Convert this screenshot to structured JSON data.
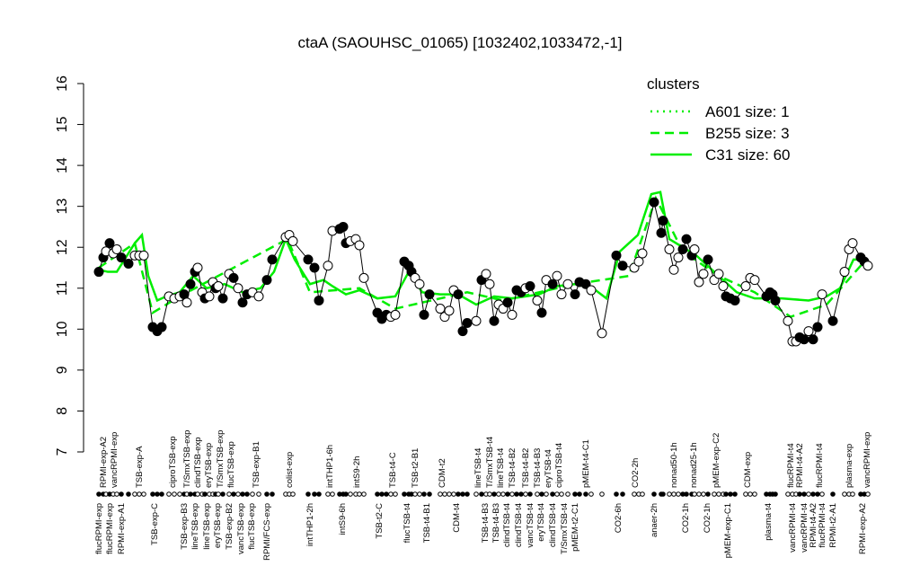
{
  "chart_data": {
    "type": "expression-profile",
    "title": "ctaA (SAOUHSC_01065) [1032402,1033472,-1]",
    "ylim": [
      7,
      16
    ],
    "yticks": [
      7,
      8,
      9,
      10,
      11,
      12,
      13,
      14,
      15,
      16
    ],
    "xlim": [
      100,
      975
    ],
    "points": {
      "x": [
        110,
        115,
        118,
        122,
        126,
        130,
        135,
        143,
        150,
        155,
        160,
        170,
        175,
        180,
        188,
        194,
        200,
        205,
        208,
        212,
        217,
        220,
        225,
        228,
        233,
        237,
        240,
        243,
        248,
        255,
        260,
        265,
        270,
        275,
        281,
        288,
        297,
        303,
        318,
        322,
        326,
        343,
        350,
        355,
        365,
        370,
        378,
        382,
        385,
        390,
        396,
        400,
        405,
        420,
        425,
        430,
        435,
        440,
        450,
        455,
        458,
        462,
        467,
        472,
        478,
        490,
        495,
        500,
        505,
        510,
        515,
        520,
        530,
        536,
        541,
        545,
        550,
        555,
        560,
        565,
        570,
        575,
        580,
        585,
        590,
        598,
        603,
        608,
        615,
        620,
        625,
        632,
        640,
        645,
        652,
        658,
        670,
        686,
        693,
        706,
        711,
        715,
        728,
        736,
        738,
        745,
        750,
        755,
        760,
        764,
        770,
        773,
        778,
        783,
        788,
        795,
        800,
        805,
        808,
        813,
        818,
        830,
        835,
        840,
        853,
        857,
        860,
        863,
        877,
        882,
        886,
        890,
        895,
        900,
        905,
        910,
        915,
        927,
        940,
        945,
        949,
        958,
        962,
        966
      ],
      "values": [
        11.4,
        11.75,
        11.9,
        12.1,
        11.85,
        11.95,
        11.75,
        11.6,
        11.8,
        11.8,
        11.8,
        10.05,
        9.95,
        10.05,
        10.8,
        10.75,
        10.8,
        10.85,
        10.65,
        11.1,
        11.4,
        11.5,
        10.9,
        10.75,
        10.8,
        11.15,
        11.0,
        11.05,
        10.75,
        11.35,
        11.25,
        11.0,
        10.65,
        10.85,
        10.9,
        10.8,
        11.2,
        11.7,
        12.25,
        12.3,
        12.15,
        11.7,
        11.5,
        10.7,
        11.55,
        12.4,
        12.45,
        12.5,
        12.1,
        12.15,
        12.2,
        12.05,
        11.25,
        10.4,
        10.25,
        10.35,
        10.3,
        10.35,
        11.65,
        11.55,
        11.4,
        11.25,
        11.1,
        10.35,
        10.85,
        10.5,
        10.3,
        10.45,
        10.95,
        10.85,
        9.95,
        10.15,
        10.2,
        11.2,
        11.35,
        11.1,
        10.2,
        10.6,
        10.5,
        10.65,
        10.35,
        10.95,
        10.9,
        11.0,
        11.05,
        10.7,
        10.4,
        11.2,
        11.1,
        11.3,
        10.85,
        11.1,
        10.85,
        11.15,
        11.1,
        10.95,
        9.9,
        11.8,
        11.55,
        11.5,
        11.65,
        11.85,
        13.1,
        12.35,
        12.65,
        11.95,
        11.45,
        11.75,
        11.95,
        12.2,
        11.8,
        11.95,
        11.15,
        11.35,
        11.7,
        11.2,
        11.35,
        11.05,
        10.8,
        10.75,
        10.7,
        11.05,
        11.25,
        11.2,
        10.8,
        10.9,
        10.85,
        10.7,
        10.2,
        9.7,
        9.7,
        9.8,
        9.75,
        9.95,
        9.75,
        10.05,
        10.85,
        10.2,
        11.4,
        11.95,
        12.1,
        11.75,
        11.65,
        11.55
      ],
      "filled": [
        1,
        1,
        0,
        1,
        0,
        0,
        1,
        1,
        0,
        0,
        0,
        1,
        1,
        1,
        0,
        0,
        0,
        1,
        0,
        1,
        1,
        0,
        0,
        1,
        0,
        0,
        1,
        0,
        1,
        0,
        1,
        0,
        1,
        1,
        0,
        0,
        1,
        1,
        0,
        0,
        0,
        1,
        1,
        1,
        0,
        0,
        1,
        1,
        1,
        0,
        0,
        0,
        0,
        1,
        1,
        1,
        0,
        0,
        1,
        1,
        1,
        0,
        0,
        1,
        1,
        0,
        0,
        0,
        0,
        1,
        1,
        1,
        0,
        1,
        0,
        0,
        1,
        0,
        0,
        1,
        0,
        1,
        1,
        0,
        1,
        0,
        1,
        0,
        1,
        0,
        0,
        0,
        1,
        1,
        1,
        0,
        0,
        1,
        1,
        0,
        0,
        0,
        1,
        1,
        1,
        0,
        0,
        0,
        1,
        1,
        1,
        0,
        0,
        0,
        1,
        0,
        0,
        0,
        1,
        1,
        1,
        0,
        0,
        0,
        1,
        1,
        1,
        1,
        0,
        0,
        0,
        1,
        1,
        0,
        1,
        1,
        0,
        1,
        0,
        0,
        0,
        1,
        1,
        0
      ]
    },
    "series": [
      {
        "name": "A601 size: 1",
        "color": "#00ee00",
        "dash": "dotted",
        "x": [],
        "values": []
      },
      {
        "name": "B255 size: 3",
        "color": "#00ee00",
        "dash": "dashed",
        "x": [
          110,
          150,
          170,
          200,
          320,
          345,
          400,
          440,
          520,
          560,
          640,
          700,
          730,
          760,
          800,
          840,
          880,
          920,
          960
        ],
        "values": [
          11.5,
          12.1,
          10.4,
          10.8,
          12.2,
          10.9,
          11.0,
          10.5,
          10.9,
          10.7,
          11.1,
          11.3,
          13.2,
          11.9,
          11.3,
          10.9,
          10.3,
          10.6,
          11.6
        ]
      },
      {
        "name": "C31 size: 60",
        "color": "#00ee00",
        "dash": "solid",
        "x": [
          110,
          120,
          130,
          140,
          150,
          158,
          165,
          175,
          185,
          200,
          215,
          230,
          250,
          270,
          290,
          305,
          318,
          328,
          345,
          360,
          370,
          385,
          400,
          420,
          440,
          455,
          470,
          490,
          510,
          530,
          550,
          570,
          600,
          620,
          640,
          660,
          675,
          690,
          710,
          725,
          735,
          745,
          760,
          775,
          790,
          805,
          820,
          840,
          870,
          900,
          920,
          935,
          950,
          960,
          968
        ],
        "values": [
          11.45,
          11.4,
          11.4,
          11.75,
          12.1,
          12.3,
          11.3,
          10.7,
          10.8,
          10.9,
          11.3,
          11.0,
          11.1,
          10.9,
          11.0,
          11.4,
          12.2,
          11.7,
          11.1,
          11.2,
          11.05,
          10.85,
          10.95,
          10.75,
          10.8,
          11.4,
          10.9,
          10.85,
          10.85,
          10.6,
          10.8,
          10.75,
          10.85,
          11.05,
          11.1,
          11.0,
          10.75,
          11.9,
          12.3,
          13.3,
          13.35,
          12.2,
          12.0,
          11.8,
          11.5,
          11.2,
          10.9,
          10.75,
          10.75,
          10.7,
          10.8,
          11.0,
          11.7,
          11.7,
          11.55
        ]
      }
    ],
    "legend_title": "clusters",
    "top_labels": {
      "x": [
        115,
        127,
        155,
        192,
        208,
        220,
        232,
        245,
        257,
        285,
        322,
        367,
        397,
        437,
        462,
        492,
        532,
        545,
        557,
        570,
        585,
        598,
        610,
        622,
        652,
        707,
        750,
        772,
        797,
        832,
        880,
        890,
        912,
        945,
        965
      ],
      "text": [
        "RPMI-exp-A2",
        "vancRPMI-exp",
        "TSB-exp-A",
        "ciproTSB-exp",
        "T/SmxTSB-exp",
        "clindTSB-exp",
        "eryTSB-exp",
        "T/SmxTSB-exp",
        "flucTSB-exp",
        "TSB-exp-B1",
        "colist-exp",
        "intTHP1-6h",
        "intS9-2h",
        "TSB-t4-C",
        "TSB-t2-B1",
        "CDM-t2",
        "lineTSB-t4",
        "T/SmxTSB-t4",
        "lineTSB-t4",
        "TSB-t4-B2",
        "TSB-t4-B2",
        "TSB-t4-B3",
        "eryTSB-t4",
        "ciproTSB-t4",
        "pMEM-t4-C1",
        "CO2-2h",
        "nonad50-1h",
        "nonad25-1h",
        "pMEM-exp-C2",
        "CDM-exp",
        "flucRPMI-t4",
        "RPMI-t4-A2",
        "flucRPMI-t4",
        "plasma-exp",
        "vancRPMI-exp"
      ]
    },
    "bottom_labels": {
      "x": [
        110,
        122,
        135,
        172,
        205,
        217,
        230,
        242,
        255,
        268,
        280,
        297,
        345,
        381,
        422,
        453,
        475,
        508,
        540,
        552,
        564,
        577,
        590,
        602,
        615,
        628,
        640,
        688,
        728,
        763,
        787,
        810,
        855,
        882,
        895,
        905,
        915,
        927,
        960
      ],
      "text": [
        "flucRPMI-exp",
        "flucRPMI-exp",
        "RPMI-exp-A1",
        "TSB-exp-C",
        "TSB-exp-B3",
        "lineTSB-exp",
        "lineTSB-exp",
        "eryTSB-exp",
        "TSB-exp-B2",
        "vancTSB-exp",
        "flucTSB-exp",
        "RPMI/FCS-exp",
        "intTHP1-2h",
        "intS9-6h",
        "TSB-t2-C",
        "flucTSB-t4",
        "TSB-t4-B1",
        "CDM-t4",
        "TSB-t4-B3",
        "TSB-t4-B3",
        "clindTSB-t4",
        "clindTSB-t4",
        "vancTSB-t4",
        "eryTSB-t4",
        "clindTSB-t4",
        "T/SmxTSB-t4",
        "pMEM-t2-C1",
        "CO2-6h",
        "anaer-2h",
        "CO2-1h",
        "CO2-1h",
        "pMEM-exp-C1",
        "plasma-t4",
        "vancRPMI-t4",
        "vancRPMI-t4",
        "RPMI-t4-A2",
        "flucRPMI-t4",
        "RPMI-t2-A1",
        "RPMI-exp-A2"
      ]
    }
  }
}
